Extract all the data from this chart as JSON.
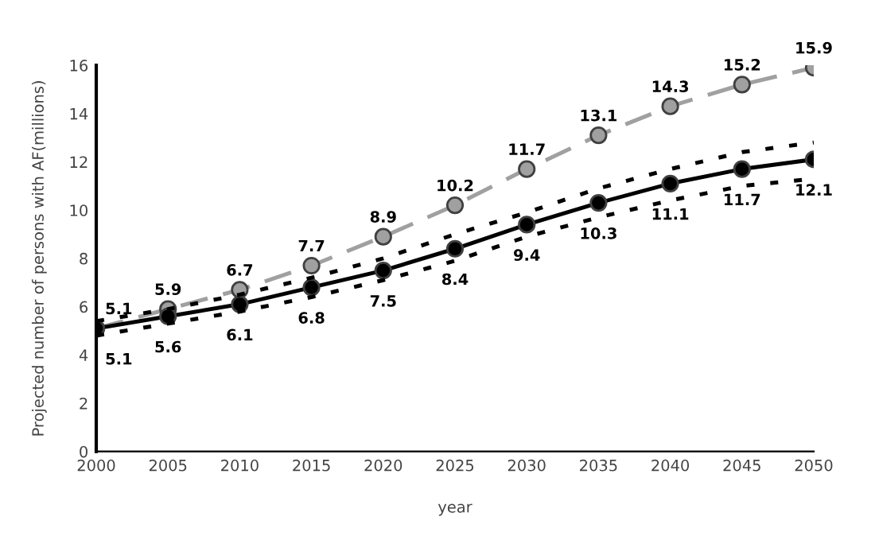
{
  "chart_data": {
    "type": "line",
    "xlabel": "year",
    "ylabel": "Projected number of persons with AF(millions)",
    "x": [
      2000,
      2005,
      2010,
      2015,
      2020,
      2025,
      2030,
      2035,
      2040,
      2045,
      2050
    ],
    "xlim": [
      2000,
      2050
    ],
    "xticks": [
      2000,
      2005,
      2010,
      2015,
      2020,
      2025,
      2030,
      2035,
      2040,
      2045,
      2050
    ],
    "ylim": [
      0,
      16
    ],
    "yticks": [
      0,
      2,
      4,
      6,
      8,
      10,
      12,
      14,
      16
    ],
    "grid": false,
    "legend": false,
    "series": [
      {
        "color": "#a0a0a0",
        "line_style": "dashed",
        "marker": "circle",
        "values": [
          5.1,
          5.9,
          6.7,
          7.7,
          8.9,
          10.2,
          11.7,
          13.1,
          14.3,
          15.2,
          15.9
        ],
        "value_labels": [
          "5.1",
          "5.9",
          "6.7",
          "7.7",
          "8.9",
          "10.2",
          "11.7",
          "13.1",
          "14.3",
          "15.2",
          "15.9"
        ]
      },
      {
        "color": "#000000",
        "line_style": "solid",
        "marker": "circle",
        "values": [
          5.1,
          5.6,
          6.1,
          6.8,
          7.5,
          8.4,
          9.4,
          10.3,
          11.1,
          11.7,
          12.1
        ],
        "value_labels": [
          "5.1",
          "5.6",
          "6.1",
          "6.8",
          "7.5",
          "8.4",
          "9.4",
          "10.3",
          "11.1",
          "11.7",
          "12.1"
        ]
      },
      {
        "color": "#000000",
        "line_style": "dotted",
        "marker": "none",
        "values": [
          5.4,
          5.9,
          6.5,
          7.2,
          8.0,
          9.0,
          9.9,
          10.9,
          11.7,
          12.4,
          12.8
        ]
      },
      {
        "color": "#000000",
        "line_style": "dotted",
        "marker": "none",
        "values": [
          4.8,
          5.3,
          5.8,
          6.4,
          7.1,
          7.9,
          8.9,
          9.7,
          10.4,
          11.0,
          11.3
        ]
      }
    ]
  }
}
